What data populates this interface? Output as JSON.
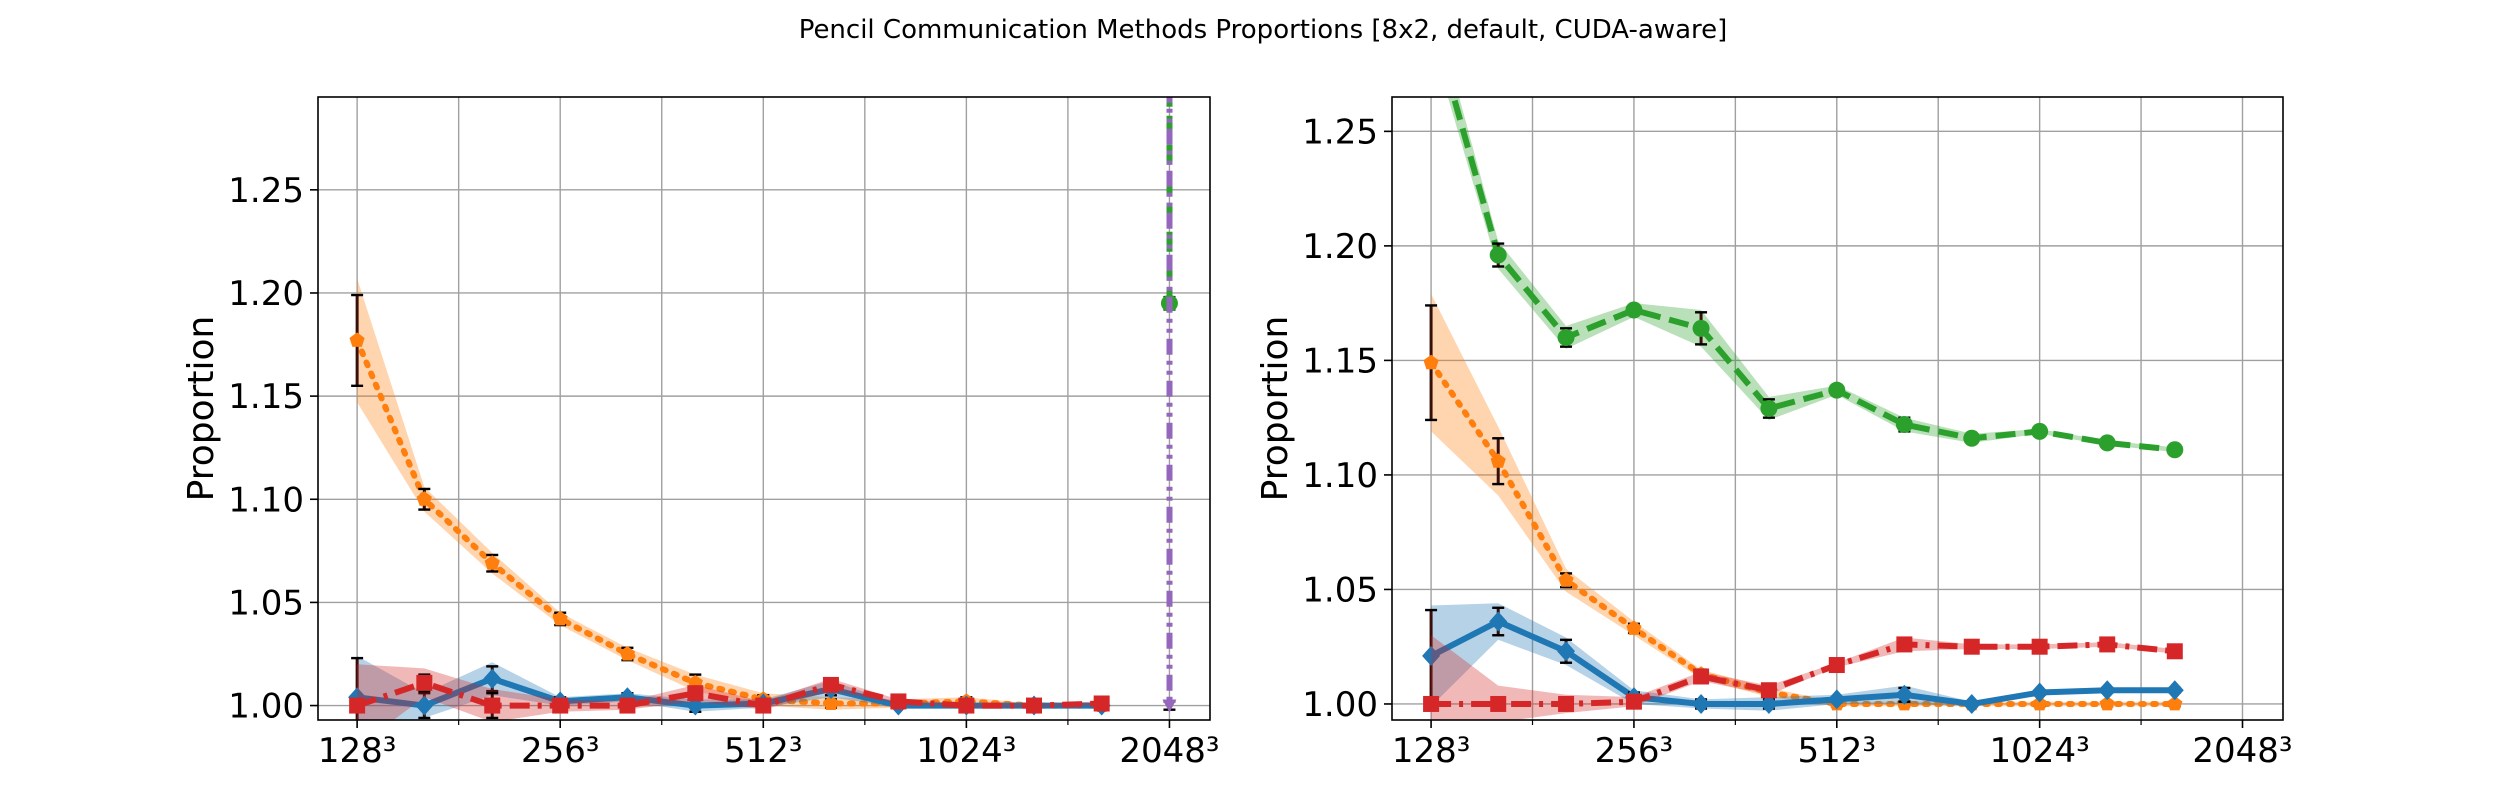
{
  "figure": {
    "title": "Pencil Communication Methods Proportions [8x2, default, CUDA-aware]"
  },
  "chart_data": [
    {
      "type": "line",
      "ylabel": "Proportion",
      "xlabel": "",
      "x_scale": "log2",
      "xlim": [
        112,
        2352
      ],
      "ylim": [
        0.993,
        1.295
      ],
      "x_ticks": [
        128,
        256,
        512,
        1024,
        2048
      ],
      "x_tick_labels": [
        "128³",
        "256³",
        "512³",
        "1024³",
        "2048³"
      ],
      "y_ticks": [
        1.0,
        1.05,
        1.1,
        1.15,
        1.2,
        1.25
      ],
      "y_tick_labels": [
        "1.00",
        "1.05",
        "1.10",
        "1.15",
        "1.20",
        "1.25"
      ],
      "grid": true,
      "series": [
        {
          "color": "#ff7f0e",
          "style": "dotted",
          "marker": "pentagon",
          "x": [
            128,
            161,
            203,
            256,
            322,
            406,
            512,
            645,
            812,
            1024,
            1290,
            1625
          ],
          "values": [
            1.177,
            1.1,
            1.069,
            1.042,
            1.025,
            1.011,
            1.003,
            1.001,
            1.001,
            1.002,
            1.0,
            1.0
          ],
          "err": [
            0.022,
            0.005,
            0.004,
            0.003,
            0.003,
            0.004,
            0.002,
            0.002,
            0.002,
            0.002,
            0.001,
            0.001
          ],
          "band": [
            0.03,
            0.006,
            0.005,
            0.003,
            0.003,
            0.004,
            0.003,
            0.003,
            0.002,
            0.002,
            0.001,
            0.001
          ]
        },
        {
          "color": "#1f77b4",
          "style": "solid",
          "marker": "diamond",
          "x": [
            128,
            161,
            203,
            256,
            322,
            406,
            512,
            645,
            812,
            1024,
            1290,
            1625
          ],
          "values": [
            1.004,
            1.0,
            1.013,
            1.002,
            1.004,
            1.0,
            1.001,
            1.008,
            1.0,
            1.0,
            1.0,
            1.0
          ],
          "err": [
            0.019,
            0.006,
            0.006,
            0.002,
            0.002,
            0.003,
            0.001,
            0.003,
            0.001,
            0.001,
            0.001,
            0.001
          ],
          "band": [
            0.02,
            0.006,
            0.008,
            0.002,
            0.002,
            0.003,
            0.002,
            0.004,
            0.001,
            0.001,
            0.001,
            0.001
          ]
        },
        {
          "color": "#d62728",
          "style": "dashdot",
          "marker": "square",
          "x": [
            128,
            161,
            203,
            256,
            322,
            406,
            512,
            645,
            812,
            1024,
            1290,
            1625
          ],
          "values": [
            1.0,
            1.011,
            1.0,
            1.0,
            1.0,
            1.006,
            1.0,
            1.01,
            1.002,
            1.0,
            1.0,
            1.001
          ],
          "err": [
            0.002,
            0.004,
            0.006,
            0.002,
            0.001,
            0.003,
            0.001,
            0.002,
            0.001,
            0.001,
            0.001,
            0.001
          ],
          "band": [
            0.02,
            0.007,
            0.008,
            0.003,
            0.002,
            0.004,
            0.002,
            0.003,
            0.001,
            0.001,
            0.001,
            0.001
          ]
        },
        {
          "color": "#2ca02c",
          "style": "dashed",
          "marker": "circle",
          "x": [
            2048,
            2048
          ],
          "values": [
            1.3,
            1.195
          ],
          "err": [
            0,
            0.003
          ],
          "band": [
            0,
            0
          ]
        },
        {
          "color": "#9467bd",
          "style": "dashdotdot",
          "marker": "triangle-down",
          "x": [
            2048,
            2048
          ],
          "values": [
            1.3,
            1.0
          ],
          "err": [
            0,
            0.002
          ],
          "band": [
            0,
            0
          ]
        }
      ]
    },
    {
      "type": "line",
      "ylabel": "Proportion",
      "xlabel": "",
      "x_scale": "log2",
      "xlim": [
        112,
        2352
      ],
      "ylim": [
        0.993,
        1.265
      ],
      "x_ticks": [
        128,
        256,
        512,
        1024,
        2048
      ],
      "x_tick_labels": [
        "128³",
        "256³",
        "512³",
        "1024³",
        "2048³"
      ],
      "y_ticks": [
        1.0,
        1.05,
        1.1,
        1.15,
        1.2,
        1.25
      ],
      "y_tick_labels": [
        "1.00",
        "1.05",
        "1.10",
        "1.15",
        "1.20",
        "1.25"
      ],
      "grid": true,
      "series": [
        {
          "color": "#2ca02c",
          "style": "dashed",
          "marker": "circle",
          "x": [
            128,
            161,
            203,
            256,
            322,
            406,
            512,
            645,
            812,
            1024,
            1290,
            1625
          ],
          "values": [
            1.3,
            1.196,
            1.16,
            1.172,
            1.164,
            1.129,
            1.137,
            1.122,
            1.116,
            1.119,
            1.114,
            1.111
          ],
          "err": [
            0.0,
            0.005,
            0.004,
            0.002,
            0.007,
            0.004,
            0.001,
            0.003,
            0.001,
            0.001,
            0.001,
            0.001
          ],
          "band": [
            0.01,
            0.006,
            0.005,
            0.003,
            0.008,
            0.005,
            0.002,
            0.003,
            0.002,
            0.001,
            0.001,
            0.001
          ]
        },
        {
          "color": "#ff7f0e",
          "style": "dotted",
          "marker": "pentagon",
          "x": [
            128,
            161,
            203,
            256,
            322,
            406,
            512,
            645,
            812,
            1024,
            1290,
            1625
          ],
          "values": [
            1.149,
            1.106,
            1.054,
            1.033,
            1.013,
            1.005,
            1.0,
            1.0,
            1.0,
            1.0,
            1.0,
            1.0
          ],
          "err": [
            0.025,
            0.01,
            0.003,
            0.002,
            0.002,
            0.002,
            0.001,
            0.001,
            0.001,
            0.001,
            0.001,
            0.001
          ],
          "band": [
            0.03,
            0.015,
            0.005,
            0.003,
            0.002,
            0.002,
            0.001,
            0.001,
            0.001,
            0.001,
            0.001,
            0.001
          ]
        },
        {
          "color": "#1f77b4",
          "style": "solid",
          "marker": "diamond",
          "x": [
            128,
            161,
            203,
            256,
            322,
            406,
            512,
            645,
            812,
            1024,
            1290,
            1625
          ],
          "values": [
            1.021,
            1.036,
            1.023,
            1.003,
            1.0,
            1.0,
            1.002,
            1.004,
            1.0,
            1.005,
            1.006,
            1.006
          ],
          "err": [
            0.02,
            0.006,
            0.005,
            0.002,
            0.002,
            0.002,
            0.001,
            0.003,
            0.001,
            0.001,
            0.001,
            0.001
          ],
          "band": [
            0.022,
            0.008,
            0.006,
            0.003,
            0.002,
            0.003,
            0.002,
            0.004,
            0.001,
            0.001,
            0.001,
            0.001
          ]
        },
        {
          "color": "#d62728",
          "style": "dashdot",
          "marker": "square",
          "x": [
            128,
            161,
            203,
            256,
            322,
            406,
            512,
            645,
            812,
            1024,
            1290,
            1625
          ],
          "values": [
            1.0,
            1.0,
            1.0,
            1.001,
            1.012,
            1.006,
            1.017,
            1.026,
            1.025,
            1.025,
            1.026,
            1.023
          ],
          "err": [
            0.001,
            0.002,
            0.002,
            0.001,
            0.001,
            0.001,
            0.001,
            0.002,
            0.001,
            0.001,
            0.001,
            0.001
          ],
          "band": [
            0.03,
            0.008,
            0.004,
            0.002,
            0.002,
            0.002,
            0.001,
            0.003,
            0.001,
            0.001,
            0.001,
            0.001
          ]
        }
      ]
    }
  ]
}
